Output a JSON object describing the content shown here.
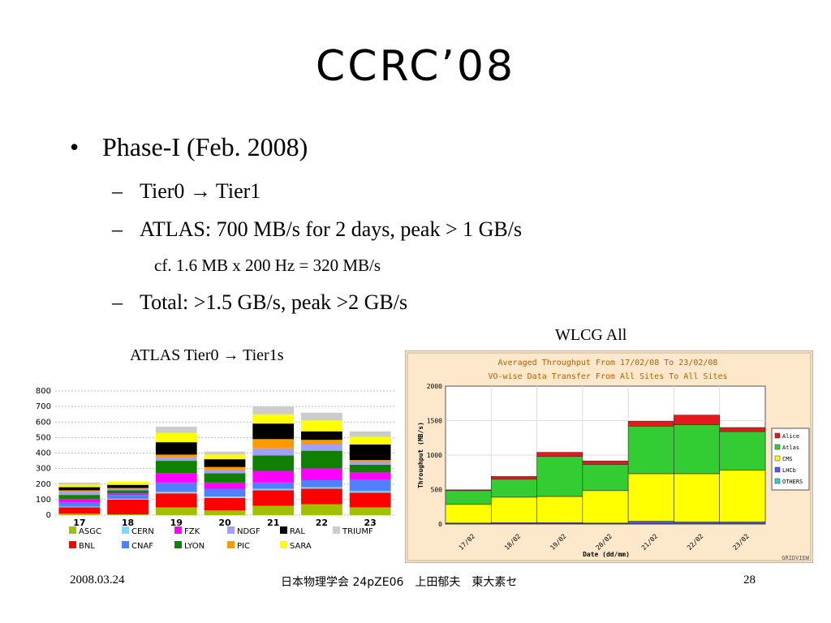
{
  "slide": {
    "title": "CCRC’08",
    "bullet1": "Phase-I (Feb. 2008)",
    "sub1": "Tier0 → Tier1",
    "sub2": "ATLAS: 700 MB/s for 2 days, peak > 1 GB/s",
    "subsub1": "cf. 1.6 MB x 200 Hz = 320 MB/s",
    "sub3": "Total: >1.5 GB/s, peak >2 GB/s",
    "bullet_mark": "•",
    "dash": "–",
    "caption_left": "ATLAS Tier0 → Tier1s",
    "caption_right": "WLCG All"
  },
  "footer": {
    "date": "2008.03.24",
    "center": "日本物理学会 24pZE06　上田郁夫　東大素セ",
    "page": "28"
  },
  "chart_data": [
    {
      "type": "bar",
      "stacked": true,
      "categories": [
        "17",
        "18",
        "19",
        "20",
        "21",
        "22",
        "23"
      ],
      "ylim": [
        0,
        800
      ],
      "yticks": [
        0,
        100,
        200,
        300,
        400,
        500,
        600,
        700,
        800
      ],
      "grid": true,
      "legend_position": "bottom",
      "series": [
        {
          "name": "ASGC",
          "color": "#a0c000",
          "values": [
            10,
            5,
            50,
            30,
            60,
            70,
            50
          ]
        },
        {
          "name": "BNL",
          "color": "#ff0000",
          "values": [
            40,
            95,
            90,
            80,
            100,
            100,
            95
          ]
        },
        {
          "name": "CERN",
          "color": "#80d8ff",
          "values": [
            5,
            5,
            10,
            10,
            10,
            10,
            10
          ]
        },
        {
          "name": "CNAF",
          "color": "#4f81ff",
          "values": [
            25,
            25,
            60,
            50,
            40,
            45,
            75
          ]
        },
        {
          "name": "FZK",
          "color": "#ff00ff",
          "values": [
            25,
            10,
            60,
            40,
            75,
            75,
            45
          ]
        },
        {
          "name": "LYON",
          "color": "#108000",
          "values": [
            25,
            20,
            80,
            60,
            100,
            115,
            50
          ]
        },
        {
          "name": "NDGF",
          "color": "#a0a0ff",
          "values": [
            20,
            10,
            20,
            20,
            45,
            40,
            20
          ]
        },
        {
          "name": "PIC",
          "color": "#ff9900",
          "values": [
            10,
            5,
            20,
            20,
            60,
            30,
            10
          ]
        },
        {
          "name": "RAL",
          "color": "#000000",
          "values": [
            20,
            20,
            80,
            50,
            100,
            55,
            100
          ]
        },
        {
          "name": "SARA",
          "color": "#ffff00",
          "values": [
            15,
            20,
            60,
            30,
            60,
            70,
            50
          ]
        },
        {
          "name": "TRIUMF",
          "color": "#cccccc",
          "values": [
            15,
            0,
            40,
            20,
            50,
            50,
            35
          ]
        }
      ]
    },
    {
      "type": "bar",
      "stacked": true,
      "title": "Averaged Throughput From 17/02/08 To 23/02/08",
      "subtitle": "VO-wise Data Transfer From All Sites To All Sites",
      "xlabel": "Date (dd/mm)",
      "ylabel": "Throughput (MB/s)",
      "categories": [
        "17/02",
        "18/02",
        "19/02",
        "20/02",
        "21/02",
        "22/02",
        "23/02"
      ],
      "ylim": [
        0,
        2000
      ],
      "yticks": [
        0,
        500,
        1000,
        1500,
        2000
      ],
      "grid": true,
      "legend_position": "right",
      "watermark": "GRIDVIEW",
      "series": [
        {
          "name": "Alice",
          "color": "#e31a1c",
          "values": [
            10,
            40,
            60,
            50,
            70,
            140,
            60
          ]
        },
        {
          "name": "Atlas",
          "color": "#33cc33",
          "values": [
            200,
            260,
            580,
            380,
            690,
            710,
            560
          ]
        },
        {
          "name": "CMS",
          "color": "#ffff00",
          "values": [
            270,
            370,
            380,
            470,
            690,
            700,
            750
          ]
        },
        {
          "name": "LHCb",
          "color": "#5555ff",
          "values": [
            10,
            15,
            15,
            10,
            30,
            20,
            20
          ]
        },
        {
          "name": "OTHERS",
          "color": "#33cccc",
          "values": [
            5,
            5,
            5,
            5,
            10,
            10,
            10
          ]
        }
      ]
    }
  ]
}
